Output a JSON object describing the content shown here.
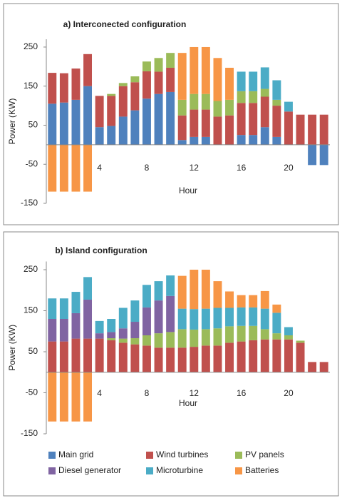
{
  "chart_data": [
    {
      "type": "bar",
      "stacked": true,
      "title": "a) Interconected configuration",
      "x_label": "Hour",
      "y_label": "Power (KW)",
      "x": [
        0,
        1,
        2,
        3,
        4,
        5,
        6,
        7,
        8,
        9,
        10,
        11,
        12,
        13,
        14,
        15,
        16,
        17,
        18,
        19,
        20,
        21,
        22,
        23
      ],
      "xlim": [
        -0.5,
        23.5
      ],
      "xticks": [
        0,
        4,
        8,
        12,
        16,
        20
      ],
      "ylim": [
        -150,
        270
      ],
      "yticks": [
        -150,
        -50,
        50,
        150,
        250
      ],
      "series": [
        {
          "color": "#4f81bd",
          "values": [
            105,
            108,
            115,
            150,
            45,
            48,
            72,
            88,
            118,
            130,
            135,
            12,
            20,
            20,
            null,
            null,
            25,
            25,
            45,
            20,
            null,
            null,
            -52,
            -52
          ]
        },
        {
          "color": "#c0504d",
          "values": [
            79,
            75,
            80,
            82,
            80,
            77,
            78,
            72,
            70,
            57,
            62,
            63,
            70,
            70,
            72,
            75,
            82,
            82,
            78,
            80,
            85,
            77,
            77,
            77
          ]
        },
        {
          "color": "#9bbb59",
          "values": [
            null,
            null,
            null,
            null,
            null,
            5,
            8,
            15,
            25,
            35,
            38,
            40,
            40,
            40,
            40,
            40,
            30,
            30,
            20,
            15,
            null,
            null,
            null,
            null
          ]
        },
        {
          "color": "#8064a2",
          "values": [
            null,
            null,
            null,
            null,
            null,
            null,
            null,
            null,
            null,
            null,
            null,
            null,
            null,
            null,
            null,
            null,
            null,
            null,
            null,
            null,
            null,
            null,
            null,
            null
          ]
        },
        {
          "color": "#4bacc6",
          "values": [
            null,
            null,
            null,
            null,
            null,
            null,
            null,
            null,
            null,
            null,
            null,
            null,
            null,
            null,
            null,
            null,
            50,
            50,
            55,
            50,
            25,
            null,
            null,
            null
          ]
        },
        {
          "color": "#f79646",
          "values": [
            -120,
            -120,
            -120,
            -120,
            null,
            null,
            null,
            null,
            null,
            null,
            null,
            120,
            120,
            120,
            110,
            82,
            null,
            null,
            null,
            null,
            null,
            null,
            null,
            null
          ]
        }
      ]
    },
    {
      "type": "bar",
      "stacked": true,
      "title": "b) Island configuration",
      "x_label": "Hour",
      "y_label": "Power (KW)",
      "x": [
        0,
        1,
        2,
        3,
        4,
        5,
        6,
        7,
        8,
        9,
        10,
        11,
        12,
        13,
        14,
        15,
        16,
        17,
        18,
        19,
        20,
        21,
        22,
        23
      ],
      "xlim": [
        -0.5,
        23.5
      ],
      "xticks": [
        0,
        4,
        8,
        12,
        16,
        20
      ],
      "ylim": [
        -150,
        270
      ],
      "yticks": [
        -150,
        -50,
        50,
        150,
        250
      ],
      "legend": "bottom",
      "series": [
        {
          "name": "Main grid",
          "color": "#4f81bd",
          "values": [
            null,
            null,
            null,
            null,
            null,
            null,
            null,
            null,
            null,
            null,
            null,
            null,
            null,
            null,
            null,
            null,
            null,
            null,
            null,
            null,
            null,
            null,
            null,
            null
          ]
        },
        {
          "name": "Wind turbines",
          "color": "#c0504d",
          "values": [
            75,
            75,
            82,
            82,
            82,
            78,
            72,
            68,
            65,
            60,
            60,
            60,
            62,
            65,
            65,
            72,
            75,
            78,
            80,
            80,
            80,
            72,
            25,
            25
          ]
        },
        {
          "name": "PV panels",
          "color": "#9bbb59",
          "values": [
            null,
            null,
            null,
            null,
            null,
            5,
            10,
            15,
            25,
            35,
            38,
            45,
            42,
            40,
            42,
            40,
            38,
            35,
            25,
            15,
            10,
            5,
            null,
            null
          ]
        },
        {
          "name": "Diesel generator",
          "color": "#8064a2",
          "values": [
            55,
            55,
            62,
            95,
            13,
            15,
            25,
            40,
            68,
            80,
            88,
            null,
            null,
            null,
            null,
            null,
            null,
            null,
            null,
            null,
            null,
            null,
            null,
            null
          ]
        },
        {
          "name": "Microturbine",
          "color": "#4bacc6",
          "values": [
            50,
            50,
            52,
            55,
            30,
            32,
            50,
            52,
            55,
            47,
            50,
            50,
            50,
            50,
            50,
            45,
            45,
            45,
            50,
            50,
            20,
            null,
            null,
            null
          ]
        },
        {
          "name": "Batteries",
          "color": "#f79646",
          "values": [
            -120,
            -120,
            -120,
            -120,
            null,
            null,
            null,
            null,
            null,
            null,
            null,
            80,
            96,
            95,
            65,
            40,
            30,
            30,
            43,
            20,
            null,
            null,
            null,
            null
          ]
        }
      ]
    }
  ]
}
